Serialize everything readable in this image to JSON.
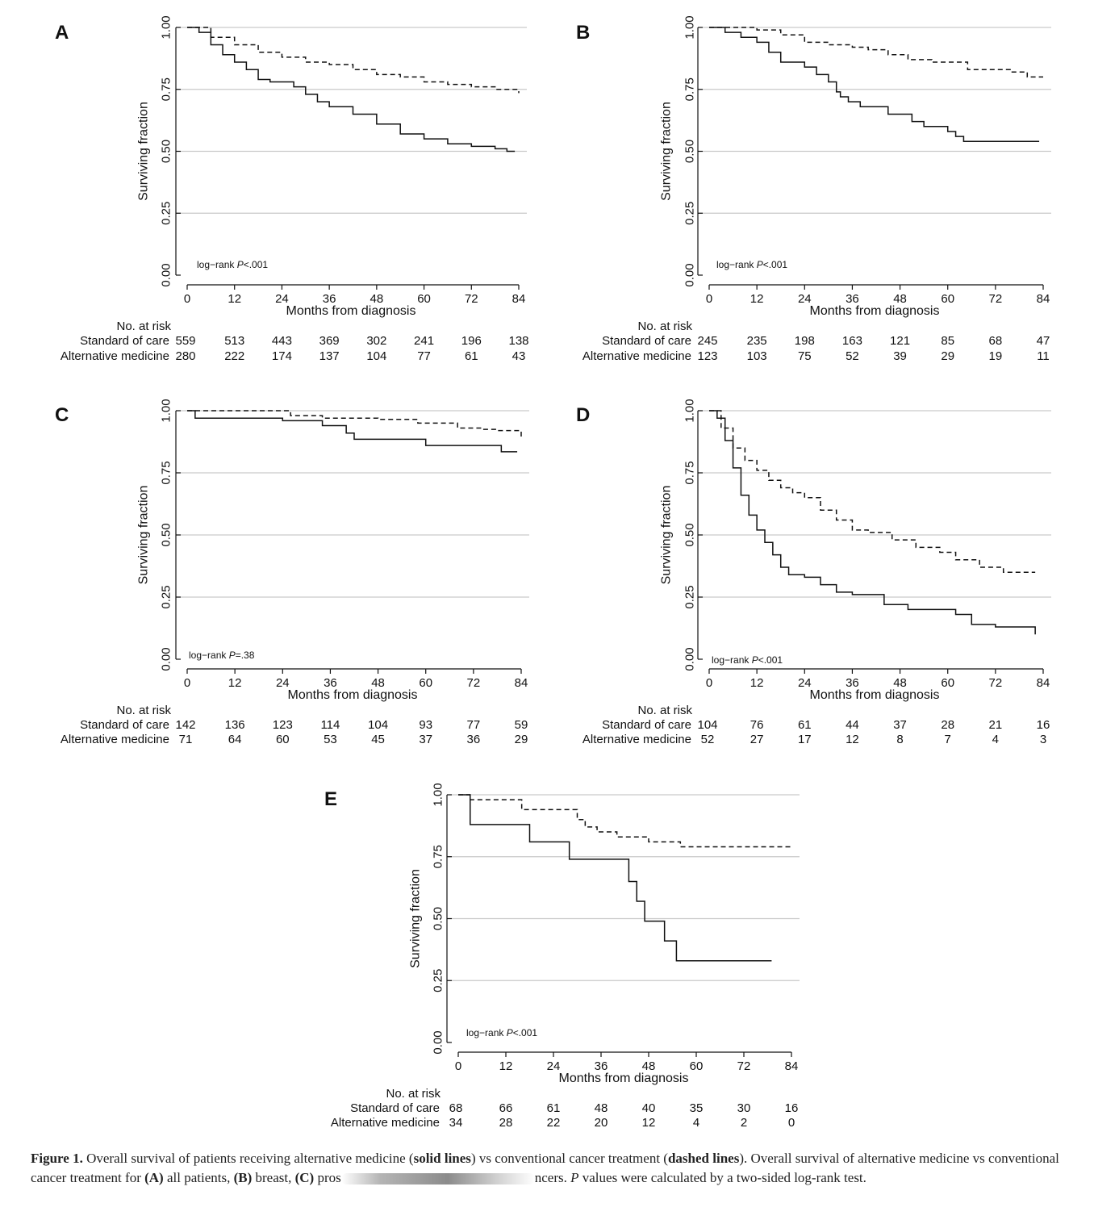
{
  "chart_data": [
    {
      "panel": "A",
      "type": "line",
      "ylabel": "Surviving fraction",
      "xlabel": "Months from diagnosis",
      "xlim": [
        0,
        84
      ],
      "ylim": [
        0,
        1
      ],
      "xticks": [
        0,
        12,
        24,
        36,
        48,
        60,
        72,
        84
      ],
      "yticks": [
        "0.00",
        "0.25",
        "0.50",
        "0.75",
        "1.00"
      ],
      "grid": true,
      "logrank_prefix": "log−rank ",
      "logrank_p": "P",
      "logrank_value": "<.001",
      "series": [
        {
          "name": "Alternative medicine",
          "style": "solid",
          "x": [
            0,
            3,
            6,
            9,
            12,
            15,
            18,
            21,
            24,
            27,
            30,
            33,
            36,
            42,
            48,
            54,
            60,
            66,
            72,
            78,
            81,
            83
          ],
          "y": [
            1.0,
            0.98,
            0.93,
            0.89,
            0.86,
            0.83,
            0.79,
            0.78,
            0.78,
            0.76,
            0.73,
            0.7,
            0.68,
            0.65,
            0.61,
            0.57,
            0.55,
            0.53,
            0.52,
            0.51,
            0.5,
            0.5
          ]
        },
        {
          "name": "Standard of care",
          "style": "dashed",
          "x": [
            0,
            6,
            12,
            18,
            24,
            30,
            36,
            42,
            48,
            54,
            60,
            66,
            72,
            78,
            84
          ],
          "y": [
            1.0,
            0.96,
            0.93,
            0.9,
            0.88,
            0.86,
            0.85,
            0.83,
            0.81,
            0.8,
            0.78,
            0.77,
            0.76,
            0.75,
            0.735
          ]
        }
      ],
      "risk_table": {
        "title": "No. at risk",
        "rows": [
          {
            "label": "Standard of care",
            "values": [
              559,
              513,
              443,
              369,
              302,
              241,
              196,
              138
            ]
          },
          {
            "label": "Alternative medicine",
            "values": [
              280,
              222,
              174,
              137,
              104,
              77,
              61,
              43
            ]
          }
        ]
      }
    },
    {
      "panel": "B",
      "type": "line",
      "ylabel": "Surviving fraction",
      "xlabel": "Months from diagnosis",
      "xlim": [
        0,
        84
      ],
      "ylim": [
        0,
        1
      ],
      "xticks": [
        0,
        12,
        24,
        36,
        48,
        60,
        72,
        84
      ],
      "yticks": [
        "0.00",
        "0.25",
        "0.50",
        "0.75",
        "1.00"
      ],
      "grid": true,
      "logrank_prefix": "log−rank ",
      "logrank_p": "P",
      "logrank_value": "<.001",
      "series": [
        {
          "name": "Alternative medicine",
          "style": "solid",
          "x": [
            0,
            4,
            8,
            12,
            15,
            18,
            24,
            27,
            30,
            32,
            33,
            35,
            38,
            45,
            51,
            54,
            60,
            62,
            64,
            68,
            83
          ],
          "y": [
            1.0,
            0.98,
            0.96,
            0.94,
            0.9,
            0.86,
            0.84,
            0.81,
            0.78,
            0.74,
            0.72,
            0.7,
            0.68,
            0.65,
            0.62,
            0.6,
            0.58,
            0.56,
            0.54,
            0.54,
            0.54
          ]
        },
        {
          "name": "Standard of care",
          "style": "dashed",
          "x": [
            0,
            12,
            18,
            24,
            30,
            36,
            40,
            45,
            50,
            56,
            60,
            65,
            70,
            76,
            80,
            84
          ],
          "y": [
            1.0,
            0.99,
            0.97,
            0.94,
            0.93,
            0.92,
            0.91,
            0.89,
            0.87,
            0.86,
            0.86,
            0.83,
            0.83,
            0.82,
            0.8,
            0.8
          ]
        }
      ],
      "risk_table": {
        "title": "No. at risk",
        "rows": [
          {
            "label": "Standard of care",
            "values": [
              245,
              235,
              198,
              163,
              121,
              85,
              68,
              47
            ]
          },
          {
            "label": "Alternative medicine",
            "values": [
              123,
              103,
              75,
              52,
              39,
              29,
              19,
              11
            ]
          }
        ]
      }
    },
    {
      "panel": "C",
      "type": "line",
      "ylabel": "Surviving fraction",
      "xlabel": "Months from diagnosis",
      "xlim": [
        0,
        84
      ],
      "ylim": [
        0,
        1
      ],
      "xticks": [
        0,
        12,
        24,
        36,
        48,
        60,
        72,
        84
      ],
      "yticks": [
        "0.00",
        "0.25",
        "0.50",
        "0.75",
        "1.00"
      ],
      "grid": true,
      "logrank_prefix": "log−rank ",
      "logrank_p": "P",
      "logrank_value": "=.38",
      "series": [
        {
          "name": "Alternative medicine",
          "style": "solid",
          "x": [
            0,
            2,
            24,
            34,
            40,
            42,
            60,
            72,
            79,
            83
          ],
          "y": [
            1.0,
            0.97,
            0.96,
            0.94,
            0.91,
            0.885,
            0.86,
            0.86,
            0.835,
            0.835
          ]
        },
        {
          "name": "Standard of care",
          "style": "dashed",
          "x": [
            0,
            24,
            26,
            34,
            48,
            58,
            68,
            74,
            78,
            84
          ],
          "y": [
            1.0,
            1.0,
            0.98,
            0.97,
            0.965,
            0.95,
            0.93,
            0.925,
            0.92,
            0.89
          ]
        }
      ],
      "risk_table": {
        "title": "No. at risk",
        "rows": [
          {
            "label": "Standard of care",
            "values": [
              142,
              136,
              123,
              114,
              104,
              93,
              77,
              59
            ]
          },
          {
            "label": "Alternative medicine",
            "values": [
              71,
              64,
              60,
              53,
              45,
              37,
              36,
              29
            ]
          }
        ]
      }
    },
    {
      "panel": "D",
      "type": "line",
      "ylabel": "Surviving fraction",
      "xlabel": "Months from diagnosis",
      "xlim": [
        0,
        84
      ],
      "ylim": [
        0,
        1
      ],
      "xticks": [
        0,
        12,
        24,
        36,
        48,
        60,
        72,
        84
      ],
      "yticks": [
        "0.00",
        "0.25",
        "0.50",
        "0.75",
        "1.00"
      ],
      "grid": true,
      "logrank_prefix": "log−rank ",
      "logrank_p": "P",
      "logrank_value": "<.001",
      "series": [
        {
          "name": "Alternative medicine",
          "style": "solid",
          "x": [
            0,
            2,
            4,
            6,
            8,
            10,
            12,
            14,
            16,
            18,
            20,
            24,
            28,
            32,
            36,
            44,
            50,
            56,
            62,
            66,
            72,
            82,
            82
          ],
          "y": [
            1.0,
            0.97,
            0.88,
            0.77,
            0.66,
            0.58,
            0.52,
            0.47,
            0.42,
            0.37,
            0.34,
            0.33,
            0.3,
            0.27,
            0.26,
            0.22,
            0.2,
            0.2,
            0.18,
            0.14,
            0.13,
            0.13,
            0.1
          ]
        },
        {
          "name": "Standard of care",
          "style": "dashed",
          "x": [
            0,
            3,
            6,
            9,
            12,
            15,
            18,
            21,
            24,
            28,
            32,
            36,
            40,
            46,
            52,
            58,
            62,
            68,
            74,
            82
          ],
          "y": [
            1.0,
            0.93,
            0.85,
            0.8,
            0.76,
            0.72,
            0.69,
            0.67,
            0.65,
            0.6,
            0.56,
            0.52,
            0.51,
            0.48,
            0.45,
            0.43,
            0.4,
            0.37,
            0.35,
            0.35
          ]
        }
      ],
      "risk_table": {
        "title": "No. at risk",
        "rows": [
          {
            "label": "Standard of care",
            "values": [
              104,
              76,
              61,
              44,
              37,
              28,
              21,
              16
            ]
          },
          {
            "label": "Alternative medicine",
            "values": [
              52,
              27,
              17,
              12,
              8,
              7,
              4,
              3
            ]
          }
        ]
      }
    },
    {
      "panel": "E",
      "type": "line",
      "ylabel": "Surviving fraction",
      "xlabel": "Months from diagnosis",
      "xlim": [
        0,
        84
      ],
      "ylim": [
        0,
        1
      ],
      "xticks": [
        0,
        12,
        24,
        36,
        48,
        60,
        72,
        84
      ],
      "yticks": [
        "0.00",
        "0.25",
        "0.50",
        "0.75",
        "1.00"
      ],
      "grid": true,
      "logrank_prefix": "log−rank ",
      "logrank_p": "P",
      "logrank_value": "<.001",
      "series": [
        {
          "name": "Alternative medicine",
          "style": "solid",
          "x": [
            0,
            3,
            18,
            28,
            43,
            45,
            47,
            52,
            55,
            79
          ],
          "y": [
            1.0,
            0.88,
            0.81,
            0.74,
            0.65,
            0.57,
            0.49,
            0.41,
            0.33,
            0.33
          ]
        },
        {
          "name": "Standard of care",
          "style": "dashed",
          "x": [
            0,
            3,
            16,
            30,
            32,
            35,
            40,
            48,
            56,
            84
          ],
          "y": [
            1.0,
            0.98,
            0.94,
            0.9,
            0.87,
            0.85,
            0.83,
            0.81,
            0.79,
            0.79
          ]
        }
      ],
      "risk_table": {
        "title": "No. at risk",
        "rows": [
          {
            "label": "Standard of care",
            "values": [
              68,
              66,
              61,
              48,
              40,
              35,
              30,
              16
            ]
          },
          {
            "label": "Alternative medicine",
            "values": [
              34,
              28,
              22,
              20,
              12,
              4,
              2,
              0
            ]
          }
        ]
      }
    }
  ],
  "caption": {
    "label": "Figure 1.",
    "t1": " Overall survival of patients receiving alternative medicine (",
    "solid": "solid lines",
    "t2": ") vs conventional cancer treatment (",
    "dashed": "dashed lines",
    "t3": "). Overall survival of alternative medicine vs conventional cancer treatment for ",
    "a": "(A)",
    "t4": " all patients, ",
    "b": "(B)",
    "t5": " breast, ",
    "c": "(C)",
    "t6": " pros",
    "t7": "ncers. ",
    "p": "P",
    "t8": " values were calculated by a two-sided log-rank test."
  }
}
